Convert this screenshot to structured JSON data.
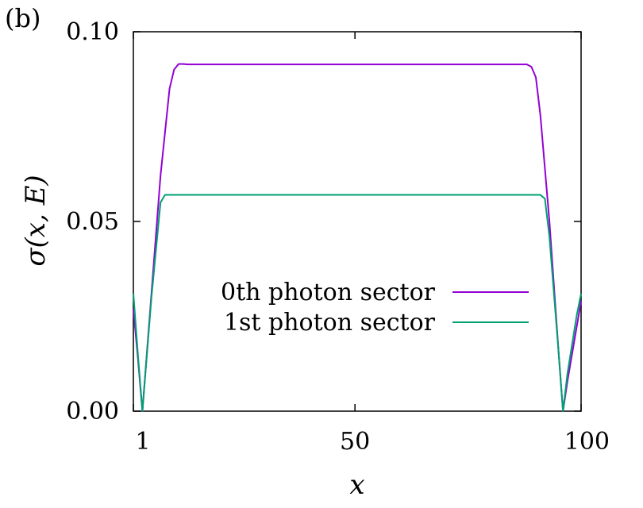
{
  "panel_label": "(b)",
  "chart_data": {
    "type": "line",
    "title": "",
    "xlabel": "x",
    "ylabel": "σ(x, E)",
    "xlim": [
      1,
      100
    ],
    "ylim": [
      0.0,
      0.1
    ],
    "xticks": [
      1,
      50,
      100
    ],
    "xtick_labels": [
      "1",
      "50",
      "100"
    ],
    "yticks": [
      0.0,
      0.05,
      0.1
    ],
    "ytick_labels": [
      "0.00",
      "0.05",
      "0.10"
    ],
    "grid": false,
    "legend_position": "lower-center",
    "series": [
      {
        "name": "0th photon sector",
        "color": "#9400d3",
        "x": [
          1,
          2,
          3,
          5,
          7,
          9,
          10,
          11,
          12,
          13,
          14,
          50,
          87,
          88,
          89,
          90,
          91,
          93,
          95,
          96,
          97,
          99,
          100
        ],
        "y": [
          0.027,
          0.014,
          0.0,
          0.031,
          0.062,
          0.085,
          0.09,
          0.0915,
          0.0915,
          0.0914,
          0.0914,
          0.0914,
          0.0914,
          0.0914,
          0.0908,
          0.088,
          0.078,
          0.05,
          0.016,
          0.0,
          0.008,
          0.022,
          0.029
        ]
      },
      {
        "name": "1st photon sector",
        "color": "#009e73",
        "x": [
          1,
          2,
          3,
          5,
          7,
          8,
          9,
          50,
          91,
          92,
          93,
          95,
          96,
          97,
          99,
          100
        ],
        "y": [
          0.031,
          0.015,
          0.0,
          0.03,
          0.055,
          0.057,
          0.057,
          0.057,
          0.057,
          0.056,
          0.046,
          0.016,
          0.0,
          0.01,
          0.025,
          0.031
        ]
      }
    ]
  }
}
